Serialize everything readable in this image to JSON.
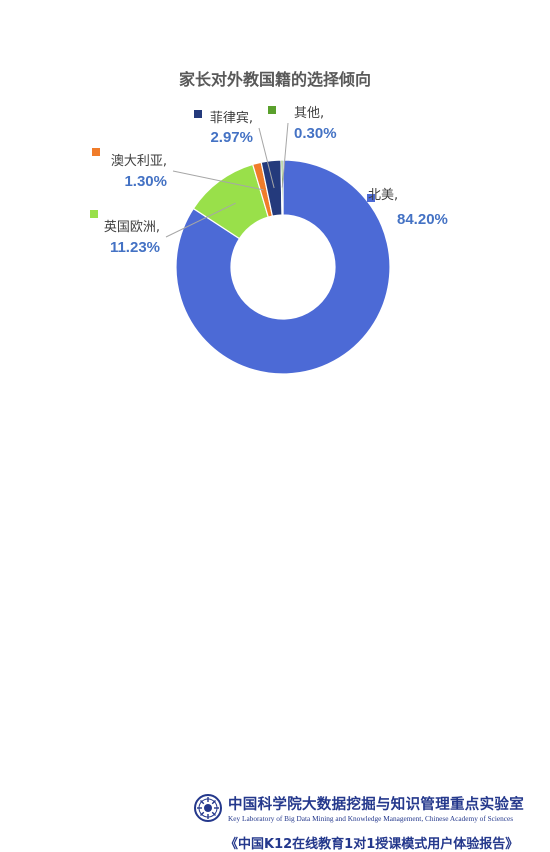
{
  "chart_data": {
    "type": "pie",
    "title": "家长对外教国籍的选择倾向",
    "slices": [
      {
        "name": "北美",
        "label": "北美,",
        "value_text": "84.20%",
        "value": 84.2,
        "color": "#4c6ad6"
      },
      {
        "name": "英国欧洲",
        "label": "英国欧洲,",
        "value_text": "11.23%",
        "value": 11.23,
        "color": "#99e04a"
      },
      {
        "name": "澳大利亚",
        "label": "澳大利亚,",
        "value_text": "1.30%",
        "value": 1.3,
        "color": "#f07c2a"
      },
      {
        "name": "菲律宾",
        "label": "菲律宾,",
        "value_text": "2.97%",
        "value": 2.97,
        "color": "#243a7c"
      },
      {
        "name": "其他",
        "label": "其他,",
        "value_text": "0.30%",
        "value": 0.3,
        "color": "#5aa02c"
      }
    ]
  },
  "footer": {
    "org_cn": "中国科学院大数据挖掘与知识管理重点实验室",
    "org_en": "Key Laboratory of Big Data Mining and Knowledge Management, Chinese Academy of Sciences",
    "report": "《中国K12在线教育1对1授课模式用户体验报告》"
  }
}
